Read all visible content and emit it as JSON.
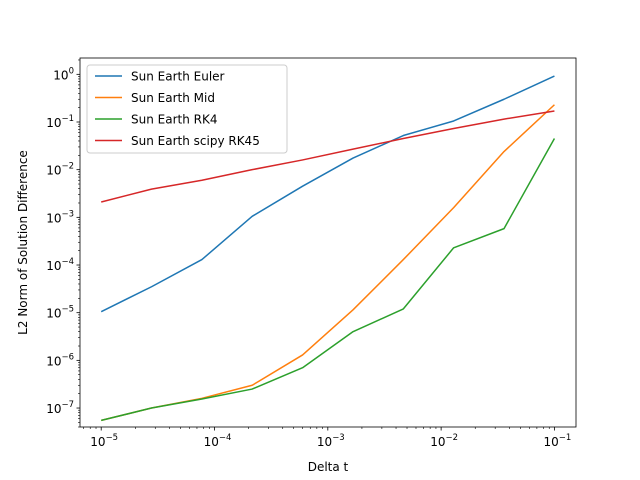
{
  "chart_data": {
    "type": "line",
    "title": "",
    "xlabel": "Delta t",
    "ylabel": "L2 Norm of Solution Difference",
    "xscale": "log",
    "yscale": "log",
    "xlim": [
      6.5e-06,
      0.155
    ],
    "ylim": [
      4e-08,
      2.2
    ],
    "xticks": [
      {
        "base": "10",
        "exp": "−5",
        "value": 1e-05
      },
      {
        "base": "10",
        "exp": "−4",
        "value": 0.0001
      },
      {
        "base": "10",
        "exp": "−3",
        "value": 0.001
      },
      {
        "base": "10",
        "exp": "−2",
        "value": 0.01
      },
      {
        "base": "10",
        "exp": "−1",
        "value": 0.1
      }
    ],
    "yticks": [
      {
        "base": "10",
        "exp": "−7",
        "value": 1e-07
      },
      {
        "base": "10",
        "exp": "−6",
        "value": 1e-06
      },
      {
        "base": "10",
        "exp": "−5",
        "value": 1e-05
      },
      {
        "base": "10",
        "exp": "−4",
        "value": 0.0001
      },
      {
        "base": "10",
        "exp": "−3",
        "value": 0.001
      },
      {
        "base": "10",
        "exp": "−2",
        "value": 0.01
      },
      {
        "base": "10",
        "exp": "−1",
        "value": 0.1
      },
      {
        "base": "10",
        "exp": "0",
        "value": 1
      }
    ],
    "grid": false,
    "legend_position": "top-left",
    "x": [
      1e-05,
      2.78e-05,
      7.74e-05,
      0.000215,
      0.000599,
      0.00167,
      0.00464,
      0.0129,
      0.0359,
      0.1
    ],
    "series": [
      {
        "name": "Sun Earth Euler",
        "color": "#1f77b4",
        "values": [
          1.05e-05,
          3.5e-05,
          0.00013,
          0.00105,
          0.0045,
          0.0175,
          0.052,
          0.105,
          0.3,
          0.92
        ]
      },
      {
        "name": "Sun Earth Mid",
        "color": "#ff7f0e",
        "values": [
          5.5e-08,
          1e-07,
          1.6e-07,
          3e-07,
          1.3e-06,
          1.15e-05,
          0.00013,
          0.0016,
          0.024,
          0.23
        ]
      },
      {
        "name": "Sun Earth RK4",
        "color": "#2ca02c",
        "values": [
          5.5e-08,
          1e-07,
          1.55e-07,
          2.5e-07,
          7e-07,
          4e-06,
          1.2e-05,
          0.00023,
          0.00058,
          0.045
        ]
      },
      {
        "name": "Sun Earth scipy RK45",
        "color": "#d62728",
        "values": [
          0.0021,
          0.0039,
          0.006,
          0.01,
          0.016,
          0.027,
          0.045,
          0.073,
          0.115,
          0.17
        ]
      }
    ]
  }
}
